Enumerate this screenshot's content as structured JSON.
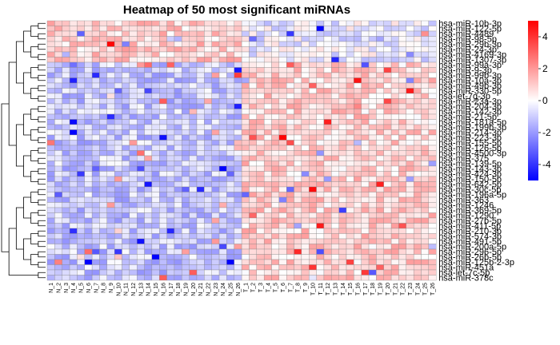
{
  "chart_data": {
    "type": "heatmap",
    "title": "Heatmap of 50 most significant miRNAs",
    "color_scale": {
      "low": "#0000ff",
      "mid": "#ffffff",
      "high": "#ff0000",
      "min": -5,
      "max": 5,
      "legend_ticks": [
        4,
        2,
        0,
        -2,
        -4
      ]
    },
    "row_labels": [
      "hsa-miR-10b-3p",
      "hsa-miR-122-5p",
      "hsa-miR-4489",
      "hsa-miR-98-5p",
      "hsa-miR-29b-3p",
      "hsa-miR-24-3p",
      "hsa-miR-4169-3p",
      "hsa-miR-1307-3p",
      "hsa-miR-99a-3p",
      "hsa-miR-9-3p",
      "hsa-miR-99b-3p",
      "hsa-miR-10a-3p",
      "hsa-miR-49b-3p",
      "hsa-miR-330-5p",
      "hsa-let-7g-3p",
      "hsa-miR-23a-3p",
      "hsa-miR-204-3p",
      "hsa-miR-142-3p",
      "hsa-miR-21-5p",
      "hsa-miR-181a-5p",
      "hsa-miR-199b-3p",
      "hsa-miR-214-3p",
      "hsa-miR-223-3p",
      "hsa-miR-155-5p",
      "hsa-miR-126-5p",
      "hsa-miR-4500-3p",
      "hsa-miR-375",
      "hsa-miR-139-5p",
      "hsa-miR-143-3p",
      "hsa-miR-424-3p",
      "hsa-miR-150-5p",
      "hsa-miR-642-5p",
      "hsa-miR-30c-5p",
      "hsa-miR-196a-5p",
      "hsa-miR-363",
      "hsa-miR-1246",
      "hsa-miR-369-5p",
      "hsa-miR-1290",
      "hsa-miR-27b-5p",
      "hsa-miR-411-5p",
      "hsa-miR-210-3p",
      "hsa-miR-574-3p",
      "hsa-miR-491-5p",
      "hsa-miR-200a-5p",
      "hsa-miR-296-5p",
      "hsa-miR-26b-5p",
      "hsa-miR-125b-2-3p",
      "hsa-miR-451a",
      "hsa-let-7c-5p",
      "hsa-miR-378c"
    ],
    "n_cols": 52,
    "left_group_cols": 26,
    "col_labels": [],
    "values": []
  }
}
